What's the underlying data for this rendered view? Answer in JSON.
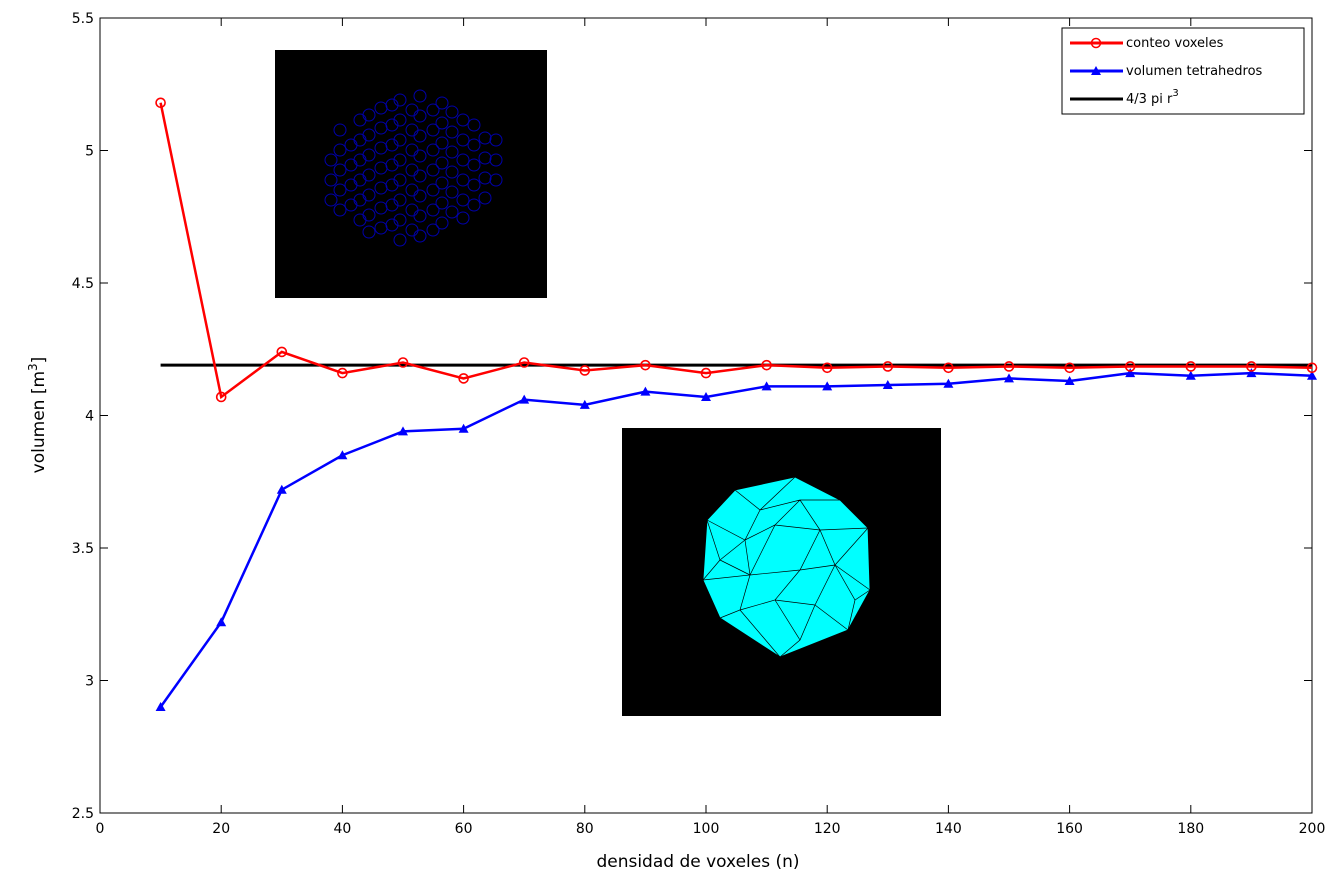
{
  "chart_data": {
    "type": "line",
    "xlabel": "densidad de voxeles (n)",
    "ylabel_main": "volumen [m",
    "ylabel_sup": "3",
    "ylabel_tail": "]",
    "xlim": [
      0,
      200
    ],
    "ylim": [
      2.5,
      5.5
    ],
    "x_ticks": [
      "0",
      "20",
      "40",
      "60",
      "80",
      "100",
      "120",
      "140",
      "160",
      "180",
      "200"
    ],
    "y_ticks": [
      "2.5",
      "3",
      "3.5",
      "4",
      "4.5",
      "5",
      "5.5"
    ],
    "grid": false,
    "legend_position": "top-right",
    "series": [
      {
        "name": "conteo voxeles",
        "color": "#ff0000",
        "marker": "circle",
        "x": [
          10,
          20,
          30,
          40,
          50,
          60,
          70,
          80,
          90,
          100,
          110,
          120,
          130,
          140,
          150,
          160,
          170,
          180,
          190,
          200
        ],
        "values": [
          5.18,
          4.07,
          4.24,
          4.16,
          4.2,
          4.14,
          4.2,
          4.17,
          4.19,
          4.16,
          4.19,
          4.18,
          4.185,
          4.18,
          4.185,
          4.18,
          4.185,
          4.185,
          4.185,
          4.18
        ]
      },
      {
        "name": "volumen tetrahedros",
        "color": "#0000ff",
        "marker": "triangle",
        "x": [
          10,
          20,
          30,
          40,
          50,
          60,
          70,
          80,
          90,
          100,
          110,
          120,
          130,
          140,
          150,
          160,
          170,
          180,
          190,
          200
        ],
        "values": [
          2.9,
          3.22,
          3.72,
          3.85,
          3.94,
          3.95,
          4.06,
          4.04,
          4.09,
          4.07,
          4.11,
          4.11,
          4.115,
          4.12,
          4.14,
          4.13,
          4.16,
          4.15,
          4.16,
          4.15
        ]
      },
      {
        "name_main": "4/3 pi r",
        "name_sup": "3",
        "color": "#000000",
        "marker": "none",
        "x": [
          10,
          200
        ],
        "values": [
          4.19,
          4.19
        ]
      }
    ],
    "insets": [
      {
        "name": "voxel-centers-inset",
        "background": "#000000",
        "mark_color": "#0000aa"
      },
      {
        "name": "tetrahedral-mesh-inset",
        "background": "#000000",
        "fill_color": "#00ffff"
      }
    ]
  }
}
